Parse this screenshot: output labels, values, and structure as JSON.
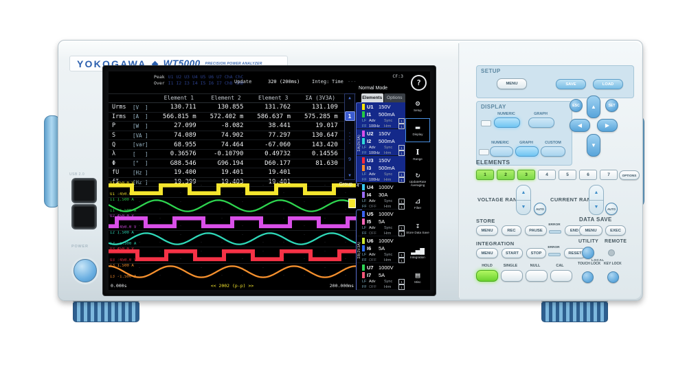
{
  "device": {
    "brand": "YOKOGAWA",
    "diamond": "◆",
    "model": "WT5000",
    "tagline": "PRECISION POWER ANALYZER",
    "usb": "USB 2.0",
    "power": "POWER"
  },
  "screen": {
    "status": {
      "peak": "Peak",
      "over": "Over",
      "peak_items": "U1 U2 U3 U4 U5 U6 U7 ChA ChC",
      "over_items": "I1 I2 I3 I4 I5 I6 I7 ChB ChD",
      "update_label": "Update",
      "update_value": "320 (200ms)",
      "integ_label": "Integ:",
      "time_label": "Time",
      "time_value": "-----:--:--",
      "mode": "Normal Mode",
      "cf": "CF:3",
      "help": "?"
    },
    "table": {
      "headers": [
        "Element 1",
        "Element 2",
        "Element 3",
        "ΣA (3V3A)"
      ],
      "rows": [
        {
          "name": "Urms",
          "unit": "[V  ]",
          "values": [
            "130.711",
            "130.855",
            "131.762",
            "131.109"
          ]
        },
        {
          "name": "Irms",
          "unit": "[A  ]",
          "values": [
            "566.815 m",
            "572.402 m",
            "586.637 m",
            "575.285 m"
          ]
        },
        {
          "name": "P",
          "unit": "[W  ]",
          "values": [
            "27.099",
            "-8.082",
            "38.441",
            "19.017"
          ]
        },
        {
          "name": "S",
          "unit": "[VA ]",
          "values": [
            "74.089",
            "74.902",
            "77.297",
            "130.647"
          ]
        },
        {
          "name": "Q",
          "unit": "[var]",
          "values": [
            "68.955",
            "74.464",
            "-67.060",
            "143.420"
          ]
        },
        {
          "name": "λ",
          "unit": "[   ]",
          "values": [
            "0.36576",
            "-0.10790",
            "0.49732",
            "0.14556"
          ]
        },
        {
          "name": "Φ",
          "unit": "[°  ]",
          "values": [
            "G88.546",
            "G96.194",
            "D60.177",
            "81.630"
          ]
        },
        {
          "name": "fU",
          "unit": "[Hz ]",
          "values": [
            "19.400",
            "19.401",
            "19.401",
            ""
          ]
        },
        {
          "name": "fI",
          "unit": "[Hz ]",
          "values": [
            "19.399",
            "19.403",
            "19.401",
            ""
          ]
        }
      ]
    },
    "pager": {
      "up": "▲",
      "current": "1",
      "dots": 4,
      "last": "9",
      "down": "▼"
    },
    "sidebar": {
      "tabs": [
        "Elements",
        "Options"
      ],
      "group_a": "ΣA(3V3A)",
      "group_b": "ΣB(3V3A)",
      "group4_marker": "4",
      "elements": [
        {
          "u": "U1",
          "u_range": "150V",
          "u_color": "#ffe600",
          "i": "I1",
          "i_range": "500mA",
          "i_color": "#22cc44",
          "lf": "LF",
          "ff": "FF",
          "lf_val": "Adv",
          "ff_val": "100Hz",
          "sync": "Sync",
          "hrm": "Hrm",
          "group": "A"
        },
        {
          "u": "U2",
          "u_range": "150V",
          "u_color": "#d94fe8",
          "i": "I2",
          "i_range": "500mA",
          "i_color": "#2fd8d8",
          "lf": "LF",
          "ff": "FF",
          "lf_val": "Adv",
          "ff_val": "100Hz",
          "sync": "Sync",
          "hrm": "Hrm",
          "group": "A"
        },
        {
          "u": "U3",
          "u_range": "150V",
          "u_color": "#ff2a3c",
          "i": "I3",
          "i_range": "500mA",
          "i_color": "#ff8c2a",
          "lf": "LF",
          "ff": "FF",
          "lf_val": "Adv",
          "ff_val": "100Hz",
          "sync": "Sync",
          "hrm": "Hrm",
          "group": "A"
        },
        {
          "u": "U4",
          "u_range": "1000V",
          "u_color": "#39c8f0",
          "i": "I4",
          "i_range": "30A",
          "i_color": "#9a6cf5",
          "lf": "LF",
          "ff": "FF",
          "lf_val": "Adv",
          "ff_val": "OFF",
          "sync": "Sync",
          "hrm": "Hrm",
          "group": "B"
        },
        {
          "u": "U5",
          "u_range": "1000V",
          "u_color": "#3b62f0",
          "i": "I5",
          "i_range": "5A",
          "i_color": "#f567b8",
          "lf": "LF",
          "ff": "FF",
          "lf_val": "Adv",
          "ff_val": "OFF",
          "sync": "Sync",
          "hrm": "Hrm",
          "group": "B"
        },
        {
          "u": "U6",
          "u_range": "1000V",
          "u_color": "#cbe62e",
          "i": "I6",
          "i_range": "5A",
          "i_color": "#2e6cf0",
          "lf": "LF",
          "ff": "FF",
          "lf_val": "Adv",
          "ff_val": "OFF",
          "sync": "Sync",
          "hrm": "Hrm",
          "group": "B"
        },
        {
          "u": "U7",
          "u_range": "1000V",
          "u_color": "#2ed455",
          "i": "I7",
          "i_range": "5A",
          "i_color": "#f55878",
          "lf": "LF",
          "ff": "FF",
          "lf_val": "Adv",
          "ff_val": "OFF",
          "sync": "Sync",
          "hrm": "Hrm",
          "group": "B"
        }
      ]
    },
    "menu": [
      {
        "name": "setup-icon",
        "label": "Setup",
        "glyph": "⚙",
        "selected": false
      },
      {
        "name": "display-icon",
        "label": "Display",
        "glyph": "▬",
        "selected": true
      },
      {
        "name": "range-icon",
        "label": "Range",
        "glyph": "I",
        "selected": false
      },
      {
        "name": "update-rate-averaging-icon",
        "label": "UpdateRate Averaging",
        "glyph": "↻",
        "selected": false
      },
      {
        "name": "filter-icon",
        "label": "Filter",
        "glyph": "⊿",
        "selected": false
      },
      {
        "name": "store-data-save-icon",
        "label": "Store Data Save",
        "glyph": "↧",
        "selected": false
      },
      {
        "name": "integration-icon",
        "label": "Integration",
        "glyph": "▂▄▆",
        "selected": false
      },
      {
        "name": "misc-icon",
        "label": "Misc",
        "glyph": "▤",
        "selected": false
      }
    ],
    "waveforms": {
      "group_label": "Group",
      "time_start": "0.000s",
      "time_center": "<< 2002 (p-p) >>",
      "time_end": "200.000ms",
      "strips": [
        {
          "ch": "U1",
          "type": "square",
          "color": "#f5e62e",
          "top_label": "U1  450.0 V",
          "bottom_label": "U1 -450.0 V",
          "phase": 0.107
        },
        {
          "ch": "I1",
          "type": "sine",
          "color": "#2ed44f",
          "top_label": "I1  1.500 A",
          "bottom_label": "I1 -1.500 A",
          "phase": 0.472
        },
        {
          "ch": "U2",
          "type": "square",
          "color": "#d94fe8",
          "top_label": "U2  450.0 V",
          "bottom_label": "U2 -450.0 V",
          "phase": 0.869
        },
        {
          "ch": "I2",
          "type": "sine",
          "color": "#2fd8b8",
          "top_label": "I2  1.500 A",
          "bottom_label": "I2 -1.500 A",
          "phase": 0.639
        },
        {
          "ch": "U3",
          "type": "square",
          "color": "#f53246",
          "top_label": "U3  450.0 V",
          "bottom_label": "U3 -450.0 V",
          "phase": 0.0
        },
        {
          "ch": "I3",
          "type": "sine",
          "color": "#f5902e",
          "top_label": "I3  1.500 A",
          "bottom_label": "I3 -1.500 A",
          "phase": 0.25
        }
      ]
    }
  },
  "panel": {
    "setup": {
      "label": "SETUP",
      "menu": "MENU",
      "save": "SAVE",
      "load": "LOAD"
    },
    "display": {
      "label": "DISPLAY",
      "numeric": "NUMERIC",
      "graph": "GRAPH",
      "custom": "CUSTOM"
    },
    "nav": {
      "esc": "ESC",
      "set": "SET",
      "up": "▲",
      "down": "▼",
      "left": "◀",
      "right": "▶"
    },
    "elements": {
      "label": "ELEMENTS",
      "buttons": [
        "1",
        "2",
        "3",
        "4",
        "5",
        "6",
        "7"
      ],
      "lit_count": 3,
      "options": "OPTIONS"
    },
    "ranges": {
      "voltage": "VOLTAGE RANGE",
      "current": "CURRENT RANGE",
      "auto": "AUTO",
      "up": "▲",
      "down": "▼"
    },
    "store": {
      "label": "STORE",
      "menu": "MENU",
      "rec": "REC",
      "pause": "PAUSE",
      "error": "ERROR",
      "end": "END"
    },
    "data_save": {
      "label": "DATA SAVE",
      "menu": "MENU",
      "exec": "EXEC"
    },
    "integration": {
      "label": "INTEGRATION",
      "menu": "MENU",
      "start": "START",
      "stop": "STOP",
      "error": "ERROR",
      "reset": "RESET"
    },
    "utility": {
      "utility": "UTILITY",
      "remote": "REMOTE",
      "local": "LOCAL"
    },
    "keys": {
      "hold": "HOLD",
      "single": "SINGLE",
      "null_label": "NULL",
      "cal": "CAL",
      "touch_lock": "TOUCH LOCK",
      "key_lock": "KEY LOCK"
    }
  }
}
